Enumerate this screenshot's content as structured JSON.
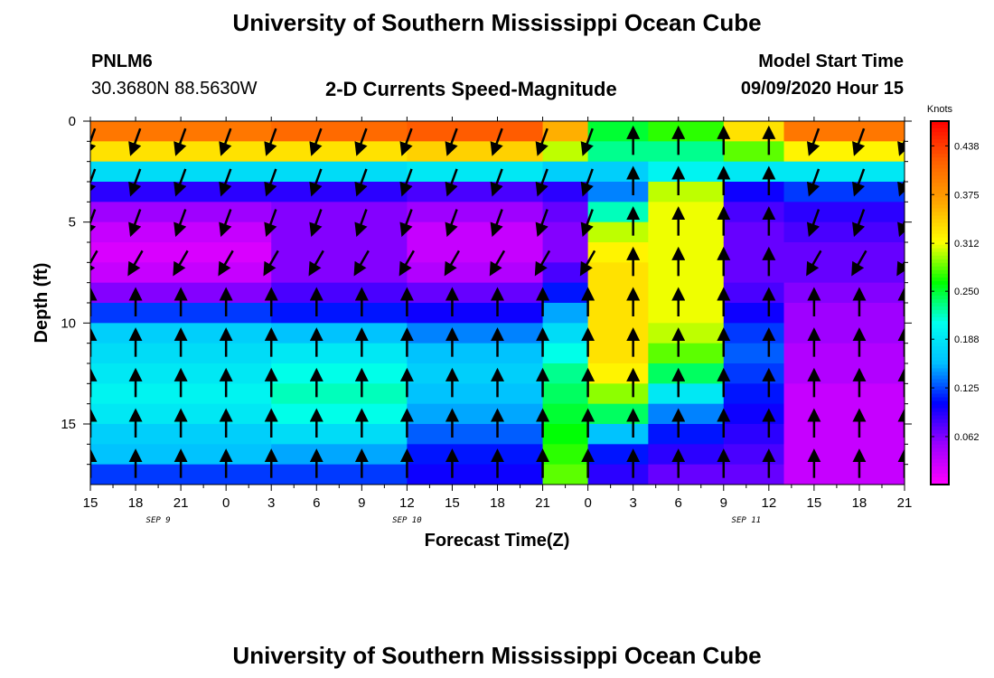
{
  "page": {
    "title_top": "University of Southern Mississippi Ocean Cube",
    "title_bottom": "University of Southern Mississippi Ocean Cube",
    "station_id": "PNLM6",
    "station_coords": "30.3680N 88.5630W",
    "plot_title": "2-D Currents Speed-Magnitude",
    "model_start_label": "Model Start Time",
    "model_start_value": "09/09/2020 Hour 15"
  },
  "chart_data": {
    "type": "heatmap",
    "title": "2-D Currents Speed-Magnitude",
    "xlabel": "Forecast Time(Z)",
    "ylabel": "Depth (ft)",
    "x_tick_labels": [
      "15",
      "18",
      "21",
      "0",
      "3",
      "6",
      "9",
      "12",
      "15",
      "18",
      "21",
      "0",
      "3",
      "6",
      "9",
      "12",
      "15",
      "18",
      "21"
    ],
    "x_range_hours": [
      0,
      54
    ],
    "date_labels": [
      {
        "text": "SEP 9",
        "hour": 4.5
      },
      {
        "text": "SEP 10",
        "hour": 21
      },
      {
        "text": "SEP 11",
        "hour": 43.5
      }
    ],
    "y_ticks": [
      0,
      5,
      10,
      15
    ],
    "y_range_ft": [
      0,
      18
    ],
    "colorbar": {
      "unit": "Knots",
      "range": [
        0.0,
        0.47
      ],
      "tick_labels": [
        "0.438",
        "0.375",
        "0.312",
        "0.250",
        "0.188",
        "0.125",
        "0.062"
      ],
      "tick_values": [
        0.438,
        0.375,
        0.312,
        0.25,
        0.188,
        0.125,
        0.062
      ],
      "colors": [
        "#ff00ff",
        "#9b00ff",
        "#0000ff",
        "#00bfff",
        "#00ffee",
        "#00ff00",
        "#ffff00",
        "#ffa500",
        "#ff6000",
        "#ff0000"
      ]
    },
    "layer_depths_ft": [
      0.5,
      1.5,
      2.5,
      3.5,
      4.5,
      5.5,
      6.5,
      7.5,
      8.5,
      9.5,
      10.5,
      11.5,
      12.5,
      13.5,
      14.5,
      15.5,
      16.5,
      17.5
    ],
    "columns": [
      {
        "t": [
          0,
          12
        ],
        "speed": [
          0.4,
          0.33,
          0.18,
          0.09,
          0.05,
          0.03,
          0.02,
          0.03,
          0.06,
          0.12,
          0.17,
          0.18,
          0.19,
          0.2,
          0.19,
          0.17,
          0.16,
          0.12
        ]
      },
      {
        "t": [
          12,
          21
        ],
        "speed": [
          0.41,
          0.33,
          0.18,
          0.09,
          0.06,
          0.06,
          0.06,
          0.06,
          0.08,
          0.11,
          0.16,
          0.19,
          0.21,
          0.22,
          0.21,
          0.18,
          0.15,
          0.12
        ]
      },
      {
        "t": [
          21,
          30
        ],
        "speed": [
          0.42,
          0.34,
          0.19,
          0.08,
          0.05,
          0.03,
          0.03,
          0.04,
          0.07,
          0.1,
          0.14,
          0.16,
          0.17,
          0.16,
          0.15,
          0.13,
          0.11,
          0.1
        ]
      },
      {
        "t": [
          30,
          33
        ],
        "speed": [
          0.36,
          0.3,
          0.17,
          0.09,
          0.07,
          0.06,
          0.06,
          0.08,
          0.11,
          0.15,
          0.18,
          0.21,
          0.23,
          0.24,
          0.25,
          0.26,
          0.27,
          0.28
        ]
      },
      {
        "t": [
          33,
          37
        ],
        "speed": [
          0.25,
          0.23,
          0.17,
          0.14,
          0.22,
          0.3,
          0.32,
          0.33,
          0.33,
          0.33,
          0.33,
          0.33,
          0.32,
          0.29,
          0.24,
          0.16,
          0.11,
          0.09
        ]
      },
      {
        "t": [
          37,
          42
        ],
        "speed": [
          0.27,
          0.23,
          0.2,
          0.3,
          0.31,
          0.31,
          0.31,
          0.31,
          0.31,
          0.31,
          0.3,
          0.28,
          0.24,
          0.19,
          0.14,
          0.11,
          0.09,
          0.07
        ]
      },
      {
        "t": [
          42,
          46
        ],
        "speed": [
          0.33,
          0.28,
          0.19,
          0.1,
          0.08,
          0.07,
          0.07,
          0.07,
          0.08,
          0.1,
          0.12,
          0.13,
          0.12,
          0.11,
          0.1,
          0.09,
          0.08,
          0.07
        ]
      },
      {
        "t": [
          46,
          54
        ],
        "speed": [
          0.4,
          0.32,
          0.19,
          0.12,
          0.09,
          0.08,
          0.07,
          0.07,
          0.06,
          0.05,
          0.05,
          0.04,
          0.04,
          0.03,
          0.03,
          0.03,
          0.03,
          0.03
        ]
      }
    ],
    "vectors": {
      "hours": [
        0,
        3,
        6,
        9,
        12,
        15,
        18,
        21,
        24,
        27,
        30,
        33,
        36,
        39,
        42,
        45,
        48,
        51,
        54
      ],
      "depths_ft": [
        1,
        3,
        5,
        7,
        9,
        11,
        13,
        15,
        17
      ],
      "direction_by_depth_deg": [
        200,
        200,
        200,
        210,
        0,
        0,
        0,
        0,
        0
      ],
      "vertical_cell_start_hour": 36
    }
  }
}
